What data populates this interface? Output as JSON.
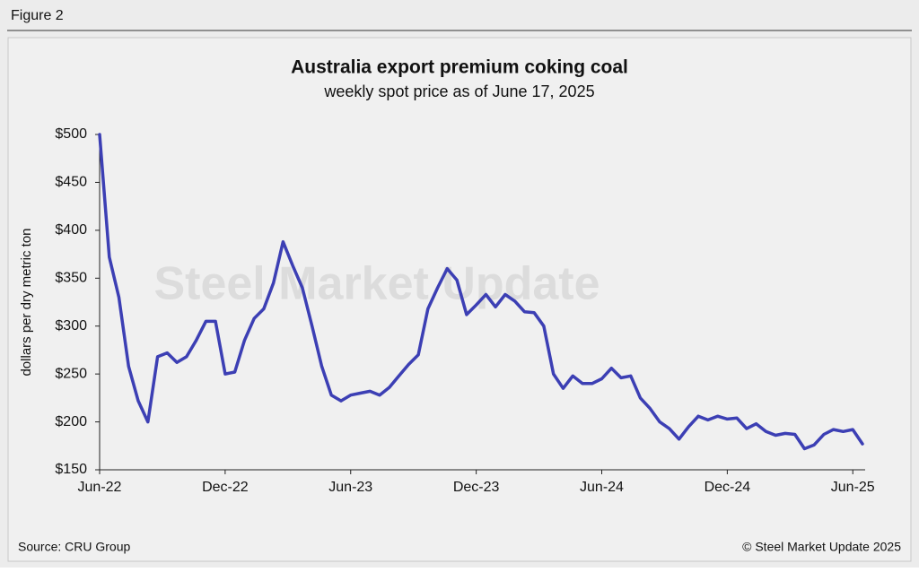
{
  "figure_label": "Figure 2",
  "source": "Source: CRU Group",
  "copyright": "© Steel Market Update 2025",
  "watermark": "Steel Market Update",
  "chart_data": {
    "type": "line",
    "title": "Australia export premium coking coal",
    "subtitle": "weekly spot price as of June 17, 2025",
    "y_label": "dollars per dry metric ton",
    "categories": [
      "Jun-22",
      null,
      null,
      null,
      null,
      null,
      null,
      null,
      null,
      null,
      null,
      null,
      null,
      "Dec-22",
      null,
      null,
      null,
      null,
      null,
      null,
      null,
      null,
      null,
      null,
      null,
      null,
      "Jun-23",
      null,
      null,
      null,
      null,
      null,
      null,
      null,
      null,
      null,
      null,
      null,
      null,
      "Dec-23",
      null,
      null,
      null,
      null,
      null,
      null,
      null,
      null,
      null,
      null,
      null,
      null,
      "Jun-24",
      null,
      null,
      null,
      null,
      null,
      null,
      null,
      null,
      null,
      null,
      null,
      null,
      "Dec-24",
      null,
      null,
      null,
      null,
      null,
      null,
      null,
      null,
      null,
      null,
      null,
      null,
      "Jun-25",
      null
    ],
    "series": [
      {
        "name": "Australia export premium coking coal",
        "color": "#3c3fb4",
        "values": [
          500,
          372,
          330,
          258,
          222,
          200,
          268,
          272,
          262,
          268,
          285,
          305,
          305,
          250,
          252,
          285,
          308,
          318,
          345,
          388,
          363,
          340,
          300,
          258,
          228,
          222,
          228,
          230,
          232,
          228,
          236,
          248,
          260,
          270,
          318,
          340,
          360,
          348,
          312,
          322,
          333,
          320,
          333,
          326,
          315,
          314,
          300,
          250,
          235,
          248,
          240,
          240,
          245,
          256,
          246,
          248,
          225,
          214,
          200,
          193,
          182,
          195,
          206,
          202,
          206,
          203,
          204,
          193,
          198,
          190,
          186,
          188,
          187,
          172,
          176,
          187,
          192,
          190,
          192,
          177
        ]
      }
    ],
    "ylim": [
      150,
      500
    ],
    "yticks": [
      {
        "value": 150,
        "label": "$150"
      },
      {
        "value": 200,
        "label": "$200"
      },
      {
        "value": 250,
        "label": "$250"
      },
      {
        "value": 300,
        "label": "$300"
      },
      {
        "value": 350,
        "label": "$350"
      },
      {
        "value": 400,
        "label": "$400"
      },
      {
        "value": 450,
        "label": "$450"
      },
      {
        "value": 500,
        "label": "$500"
      }
    ],
    "grid": false
  }
}
